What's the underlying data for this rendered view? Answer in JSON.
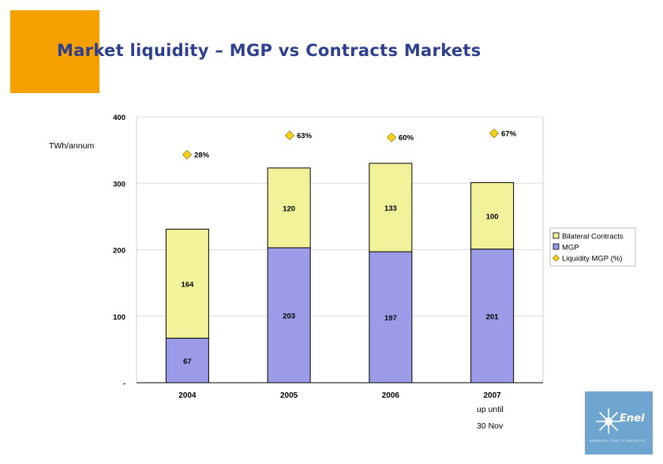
{
  "title": "Market liquidity – MGP vs Contracts Markets",
  "unit_label": "TWh/annum",
  "notes": [
    "up until",
    "30 Nov"
  ],
  "logo": {
    "brand": "Enel",
    "tagline": "ENERGIA CHE TI ASCOLTA"
  },
  "colors": {
    "title": "#2d3f8e",
    "accent_block": "#f7a100",
    "bilateral": "#f2f29a",
    "mgp": "#9b9be8",
    "liquidity_marker": "#f5d31a",
    "logo_bg": "#6fa6d0"
  },
  "chart_data": {
    "type": "bar",
    "stacked": true,
    "categories": [
      "2004",
      "2005",
      "2006",
      "2007"
    ],
    "ylabel": "TWh/annum",
    "ylim": [
      0,
      400
    ],
    "yticks": [
      0,
      100,
      200,
      300,
      400
    ],
    "ytick_labels": [
      "-",
      "100",
      "200",
      "300",
      "400"
    ],
    "grid": true,
    "legend_position": "right",
    "series": [
      {
        "name": "MGP",
        "values": [
          67,
          203,
          197,
          201
        ],
        "labels": [
          "67",
          "203",
          "197",
          "201"
        ],
        "color": "#9b9be8"
      },
      {
        "name": "Bilateral Contracts",
        "values": [
          164,
          120,
          133,
          100
        ],
        "labels": [
          "164",
          "120",
          "133",
          "100"
        ],
        "color": "#f2f29a"
      }
    ],
    "liquidity": {
      "name": "Liquidity MGP (%)",
      "values": [
        28,
        63,
        60,
        67
      ],
      "labels": [
        "28%",
        "63%",
        "60%",
        "67%"
      ],
      "y_positions": [
        343,
        372,
        369,
        375
      ]
    },
    "legend": [
      "Bilateral Contracts",
      "MGP",
      "Liquidity MGP (%)"
    ]
  }
}
